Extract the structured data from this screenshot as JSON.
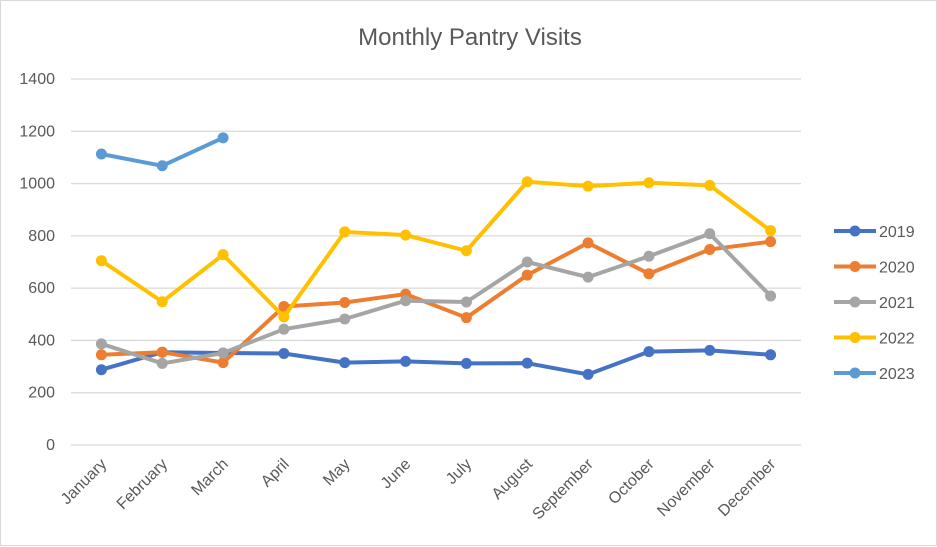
{
  "chart_data": {
    "type": "line",
    "title": "Monthly Pantry Visits",
    "xlabel": "",
    "ylabel": "",
    "categories": [
      "January",
      "February",
      "March",
      "April",
      "May",
      "June",
      "July",
      "August",
      "September",
      "October",
      "November",
      "December"
    ],
    "ylim": [
      0,
      1400
    ],
    "yticks": [
      0,
      200,
      400,
      600,
      800,
      1000,
      1200,
      1400
    ],
    "grid": true,
    "legend_position": "right",
    "series": [
      {
        "name": "2019",
        "color": "#4472C4",
        "values": [
          288,
          355,
          352,
          350,
          315,
          320,
          312,
          313,
          270,
          357,
          362,
          345
        ]
      },
      {
        "name": "2020",
        "color": "#ED7D31",
        "values": [
          345,
          355,
          315,
          530,
          545,
          577,
          487,
          650,
          773,
          655,
          748,
          778
        ]
      },
      {
        "name": "2021",
        "color": "#A5A5A5",
        "values": [
          387,
          312,
          352,
          443,
          482,
          552,
          547,
          700,
          642,
          722,
          808,
          570
        ]
      },
      {
        "name": "2022",
        "color": "#FFC000",
        "values": [
          705,
          548,
          728,
          490,
          815,
          803,
          743,
          1007,
          990,
          1003,
          993,
          820
        ]
      },
      {
        "name": "2023",
        "color": "#5B9BD5",
        "values": [
          1113,
          1068,
          1175,
          null,
          null,
          null,
          null,
          null,
          null,
          null,
          null,
          null
        ]
      }
    ]
  }
}
